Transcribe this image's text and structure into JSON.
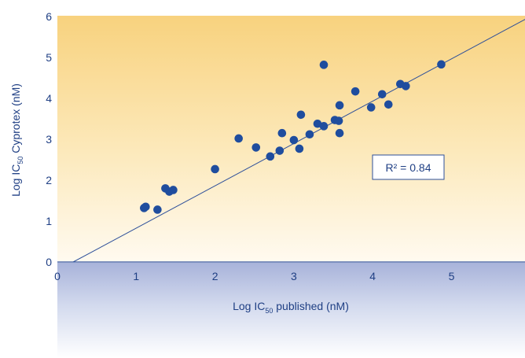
{
  "chart_data": {
    "type": "scatter",
    "title": "",
    "xlabel": {
      "pre": "Log IC",
      "sub": "50",
      "post": " published (nM)"
    },
    "ylabel": {
      "pre": "Log IC",
      "sub": "50",
      "post": " Cyprotex (nM)"
    },
    "xlim": [
      0,
      6
    ],
    "ylim": [
      0,
      6
    ],
    "x_ticks": [
      "0",
      "1",
      "2",
      "3",
      "4",
      "5"
    ],
    "y_ticks": [
      "0",
      "1",
      "2",
      "3",
      "4",
      "5",
      "6"
    ],
    "grid": false,
    "annotation": "R² = 0.84",
    "trendline": {
      "x": [
        0.2,
        6.0
      ],
      "y": [
        0.0,
        6.0
      ]
    },
    "points": [
      {
        "x": 1.1,
        "y": 1.32
      },
      {
        "x": 1.12,
        "y": 1.35
      },
      {
        "x": 1.27,
        "y": 1.28
      },
      {
        "x": 1.37,
        "y": 1.8
      },
      {
        "x": 1.42,
        "y": 1.72
      },
      {
        "x": 1.47,
        "y": 1.76
      },
      {
        "x": 2.0,
        "y": 2.27
      },
      {
        "x": 2.3,
        "y": 3.02
      },
      {
        "x": 2.52,
        "y": 2.8
      },
      {
        "x": 2.7,
        "y": 2.58
      },
      {
        "x": 2.82,
        "y": 2.72
      },
      {
        "x": 2.85,
        "y": 3.15
      },
      {
        "x": 3.0,
        "y": 2.98
      },
      {
        "x": 3.07,
        "y": 2.77
      },
      {
        "x": 3.09,
        "y": 3.6
      },
      {
        "x": 3.2,
        "y": 3.12
      },
      {
        "x": 3.3,
        "y": 3.38
      },
      {
        "x": 3.38,
        "y": 3.32
      },
      {
        "x": 3.38,
        "y": 4.82
      },
      {
        "x": 3.52,
        "y": 3.47
      },
      {
        "x": 3.57,
        "y": 3.45
      },
      {
        "x": 3.58,
        "y": 3.83
      },
      {
        "x": 3.58,
        "y": 3.15
      },
      {
        "x": 3.78,
        "y": 4.17
      },
      {
        "x": 3.98,
        "y": 3.78
      },
      {
        "x": 4.12,
        "y": 4.1
      },
      {
        "x": 4.2,
        "y": 3.85
      },
      {
        "x": 4.35,
        "y": 4.35
      },
      {
        "x": 4.42,
        "y": 4.3
      },
      {
        "x": 4.87,
        "y": 4.83
      }
    ],
    "colors": {
      "marker": "#1f4d9e",
      "text": "#1f3f84",
      "line": "#2d4f9a"
    }
  }
}
